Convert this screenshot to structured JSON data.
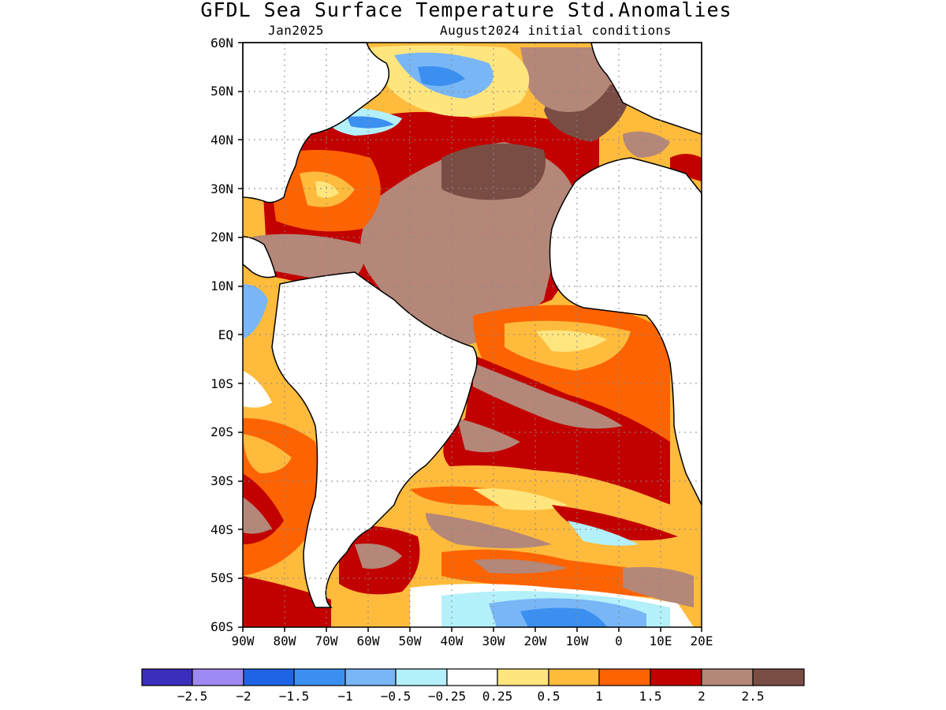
{
  "title": "GFDL Sea Surface Temperature Std.Anomalies",
  "subtitle_left": "Jan2025",
  "subtitle_right": "August2024 initial conditions",
  "map": {
    "lon_range": [
      -90,
      20
    ],
    "lat_range": [
      -60,
      60
    ],
    "grid": "dotted",
    "y_ticks": [
      "60N",
      "50N",
      "40N",
      "30N",
      "20N",
      "10N",
      "EQ",
      "10S",
      "20S",
      "30S",
      "40S",
      "50S",
      "60S"
    ],
    "x_ticks": [
      "90W",
      "80W",
      "70W",
      "60W",
      "50W",
      "40W",
      "30W",
      "20W",
      "10W",
      "0",
      "10E",
      "20E"
    ]
  },
  "colorbar": {
    "colors": [
      "#3a2ebc",
      "#9e88f2",
      "#1f64e6",
      "#3b8ff0",
      "#78b6f6",
      "#b4f0fa",
      "#ffffff",
      "#ffe57e",
      "#ffbb3c",
      "#fe6302",
      "#c20000",
      "#b48779",
      "#7a4d44"
    ],
    "labels": [
      "−2.5",
      "−2",
      "−1.5",
      "−1",
      "−0.5",
      "−0.25",
      "0.25",
      "0.5",
      "1",
      "1.5",
      "2",
      "2.5"
    ]
  }
}
